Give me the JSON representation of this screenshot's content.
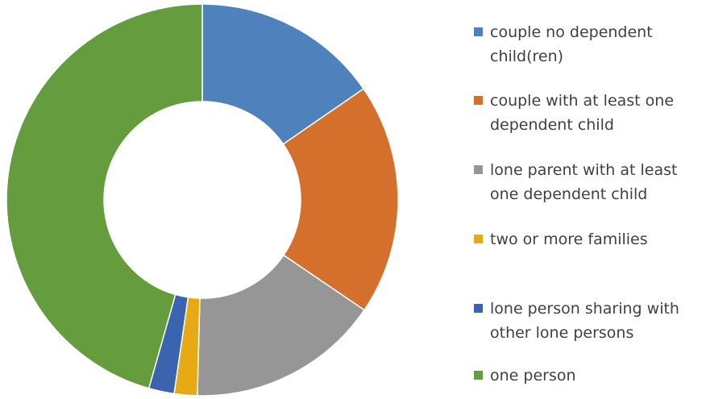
{
  "chart_data": {
    "type": "pie",
    "style": "donut",
    "title": "",
    "legend_position": "right",
    "categories": [
      "couple no dependent child(ren)",
      "couple with at least one dependent child",
      "lone parent with at least one dependent child",
      "two or more families",
      "lone person sharing with other lone persons",
      "one person"
    ],
    "legend_lines": [
      [
        "couple  no dependent",
        "child(ren)"
      ],
      [
        "couple  with at least one",
        "dependent  child"
      ],
      [
        "lone parent with  at least",
        "one dependent  child"
      ],
      [
        "two  or more families"
      ],
      [
        "lone person sharing with",
        "other  lone persons"
      ],
      [
        "one person"
      ]
    ],
    "values": [
      15.4,
      19.1,
      15.9,
      1.9,
      2.1,
      45.6
    ],
    "colors": [
      "#4f81bd",
      "#d4702b",
      "#969696",
      "#e7aa14",
      "#3a63b0",
      "#659c3e"
    ]
  }
}
